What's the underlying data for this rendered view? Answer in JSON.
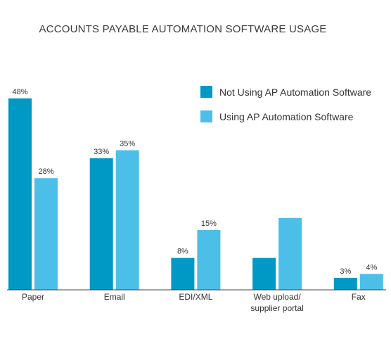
{
  "chart_data": {
    "type": "bar",
    "title": "ACCOUNTS PAYABLE AUTOMATION SOFTWARE USAGE",
    "xlabel": "",
    "ylabel": "",
    "ylim": [
      0,
      55
    ],
    "grid": false,
    "legend_position": "top-right",
    "categories": [
      [
        "Paper"
      ],
      [
        "Email"
      ],
      [
        "EDI/XML"
      ],
      [
        "Web upload/",
        "supplier portal"
      ],
      [
        "Fax"
      ]
    ],
    "series": [
      {
        "name": "Not Using AP Automation Software",
        "color": "#0099c6",
        "values": [
          48,
          33,
          8,
          8,
          3
        ],
        "labels": [
          "48%",
          "33%",
          "8%",
          "",
          "3%"
        ]
      },
      {
        "name": "Using AP Automation Software",
        "color": "#4cbfe8",
        "values": [
          28,
          35,
          15,
          18,
          4
        ],
        "labels": [
          "28%",
          "35%",
          "15%",
          "",
          "4%"
        ]
      }
    ]
  }
}
